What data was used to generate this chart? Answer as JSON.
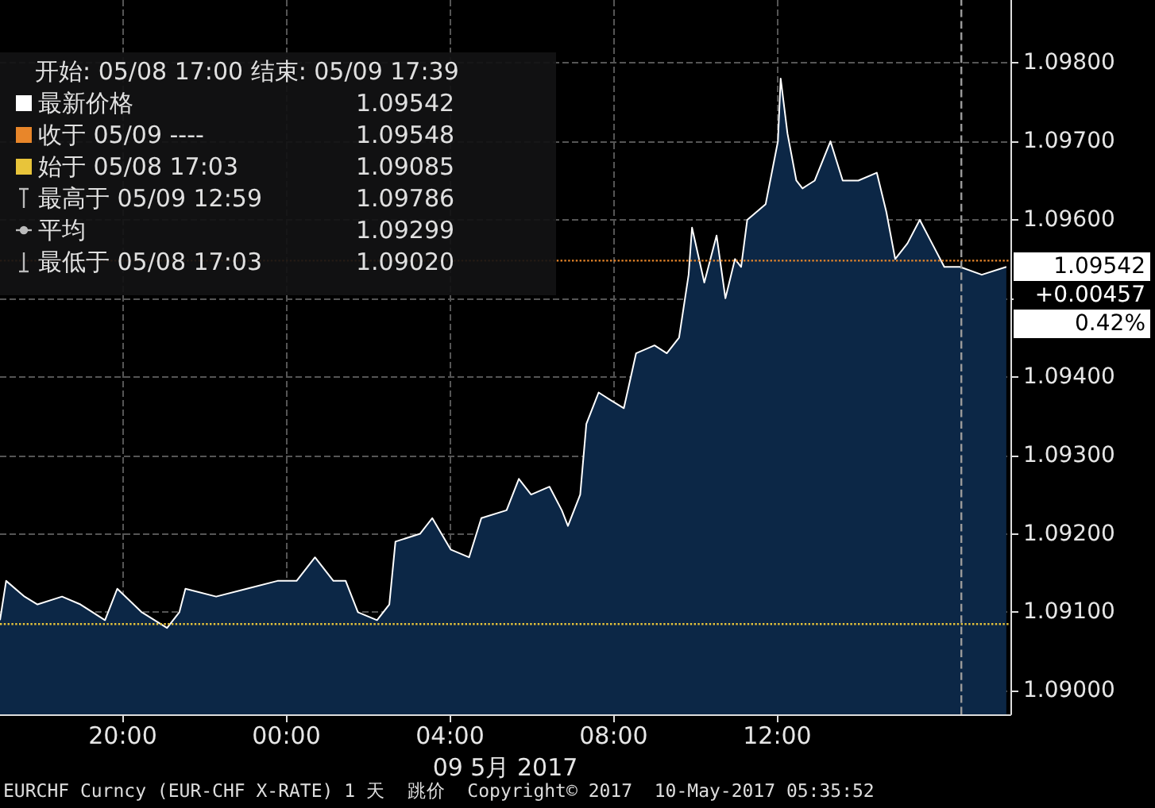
{
  "chart_data": {
    "type": "area",
    "xlabel": "09 5月 2017",
    "x": [
      "2017-05-08T17:00",
      "2017-05-08T17:09",
      "2017-05-08T17:36",
      "2017-05-08T17:55",
      "2017-05-08T18:31",
      "2017-05-08T18:58",
      "2017-05-08T19:34",
      "2017-05-08T19:52",
      "2017-05-08T20:28",
      "2017-05-08T21:05",
      "2017-05-08T21:23",
      "2017-05-08T21:32",
      "2017-05-08T22:17",
      "2017-05-08T23:02",
      "2017-05-08T23:47",
      "2017-05-09T00:15",
      "2017-05-09T00:42",
      "2017-05-09T01:09",
      "2017-05-09T01:27",
      "2017-05-09T01:45",
      "2017-05-09T02:13",
      "2017-05-09T02:31",
      "2017-05-09T02:40",
      "2017-05-09T03:16",
      "2017-05-09T03:34",
      "2017-05-09T04:01",
      "2017-05-09T04:28",
      "2017-05-09T04:46",
      "2017-05-09T05:23",
      "2017-05-09T05:41",
      "2017-05-09T05:59",
      "2017-05-09T06:26",
      "2017-05-09T06:44",
      "2017-05-09T06:53",
      "2017-05-09T07:11",
      "2017-05-09T07:20",
      "2017-05-09T07:38",
      "2017-05-09T07:56",
      "2017-05-09T08:15",
      "2017-05-09T08:33",
      "2017-05-09T09:00",
      "2017-05-09T09:18",
      "2017-05-09T09:36",
      "2017-05-09T09:50",
      "2017-05-09T09:55",
      "2017-05-09T10:13",
      "2017-05-09T10:31",
      "2017-05-09T10:44",
      "2017-05-09T10:58",
      "2017-05-09T11:07",
      "2017-05-09T11:16",
      "2017-05-09T11:43",
      "2017-05-09T12:01",
      "2017-05-09T12:05",
      "2017-05-09T12:15",
      "2017-05-09T12:28",
      "2017-05-09T12:37",
      "2017-05-09T12:55",
      "2017-05-09T13:18",
      "2017-05-09T13:36",
      "2017-05-09T13:59",
      "2017-05-09T14:26",
      "2017-05-09T14:40",
      "2017-05-09T14:53",
      "2017-05-09T15:11",
      "2017-05-09T15:29",
      "2017-05-09T15:47",
      "2017-05-09T16:05",
      "2017-05-09T16:28",
      "2017-05-09T17:00",
      "2017-05-09T17:36"
    ],
    "series": [
      {
        "color": "#ffffff",
        "values": [
          1.0909,
          1.0914,
          1.0912,
          1.0911,
          1.0912,
          1.0911,
          1.0909,
          1.0913,
          1.091,
          1.0908,
          1.091,
          1.0913,
          1.0912,
          1.0913,
          1.0914,
          1.0914,
          1.0917,
          1.0914,
          1.0914,
          1.091,
          1.0909,
          1.0911,
          1.0919,
          1.092,
          1.0922,
          1.0918,
          1.0917,
          1.0922,
          1.0923,
          1.0927,
          1.0925,
          1.0926,
          1.0923,
          1.0921,
          1.0925,
          1.0934,
          1.0938,
          1.0937,
          1.0936,
          1.0943,
          1.0944,
          1.0943,
          1.0945,
          1.0953,
          1.0959,
          1.0952,
          1.0958,
          1.095,
          1.0955,
          1.0954,
          1.096,
          1.0962,
          1.097,
          1.0978,
          1.0971,
          1.0965,
          1.0964,
          1.0965,
          1.097,
          1.0965,
          1.0965,
          1.0966,
          1.0961,
          1.0955,
          1.0957,
          1.096,
          1.0957,
          1.0954,
          1.0954,
          1.0953,
          1.0954
        ]
      }
    ],
    "xlim": [
      "2017-05-08T17:00",
      "2017-05-09T17:42"
    ],
    "xticks": [
      {
        "value": "2017-05-08T20:00",
        "label": "20:00"
      },
      {
        "value": "2017-05-09T00:00",
        "label": "00:00"
      },
      {
        "value": "2017-05-09T04:00",
        "label": "04:00"
      },
      {
        "value": "2017-05-09T08:00",
        "label": "08:00"
      },
      {
        "value": "2017-05-09T12:00",
        "label": "12:00"
      }
    ],
    "ylim": [
      1.0897,
      1.0988
    ],
    "yticks": [
      {
        "value": 1.09,
        "label": "1.09000"
      },
      {
        "value": 1.091,
        "label": "1.09100"
      },
      {
        "value": 1.092,
        "label": "1.09200"
      },
      {
        "value": 1.093,
        "label": "1.09300"
      },
      {
        "value": 1.094,
        "label": "1.09400"
      },
      {
        "value": 1.095,
        "label": null
      },
      {
        "value": 1.096,
        "label": "1.09600"
      },
      {
        "value": 1.097,
        "label": "1.09700"
      },
      {
        "value": 1.098,
        "label": "1.09800"
      }
    ],
    "ref_lines": [
      {
        "axis": "y",
        "value": 1.09548,
        "color": "#e8862a",
        "line_style": "dotted"
      },
      {
        "axis": "y",
        "value": 1.09085,
        "color": "#e8c43a",
        "line_style": "dotted"
      },
      {
        "axis": "x",
        "value": "2017-05-09T16:30",
        "color": "#9a9a9a",
        "line_style": "dashed"
      }
    ],
    "grid": true,
    "marker": "none",
    "annotations": [
      "开始: 05/08 17:00 结束: 05/09 17:39",
      "最新价格",
      "1.09542",
      "收于 05/09 ----",
      "1.09548",
      "始于 05/08 17:03",
      "1.09085",
      "最高于 05/09 12:59",
      "1.09786",
      "平均",
      "1.09299",
      "最低于 05/08 17:03",
      "1.09020",
      "1.09542",
      "+0.00457",
      "0.42%",
      "EURCHF Curncy (EUR-CHF X-RATE) 1 天  跳价  Copyright© 2017  10-May-2017 05:35:52"
    ]
  }
}
